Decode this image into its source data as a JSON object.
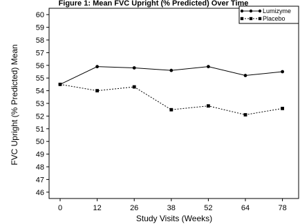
{
  "chart_data": {
    "type": "line",
    "title": "Figure 1: Mean FVC Upright (% Predicted) Over Time",
    "xlabel": "Study Visits (Weeks)",
    "ylabel": "FVC Upright (% Predicted) Mean",
    "x": [
      0,
      12,
      26,
      38,
      52,
      64,
      78
    ],
    "x_tick_labels": [
      "0",
      "12",
      "26",
      "38",
      "52",
      "64",
      "78"
    ],
    "ylim": [
      45.5,
      60.5
    ],
    "y_ticks": [
      46,
      47,
      48,
      49,
      50,
      51,
      52,
      53,
      54,
      55,
      56,
      57,
      58,
      59,
      60
    ],
    "grid": false,
    "legend_position": "top-right",
    "series": [
      {
        "name": "Lumizyme",
        "values": [
          54.5,
          55.9,
          55.8,
          55.6,
          55.9,
          55.2,
          55.5
        ],
        "marker": "circle",
        "line_style": "solid"
      },
      {
        "name": "Placebo",
        "values": [
          54.5,
          54.0,
          54.3,
          52.5,
          52.8,
          52.1,
          52.6
        ],
        "marker": "square",
        "line_style": "dotted"
      }
    ]
  }
}
